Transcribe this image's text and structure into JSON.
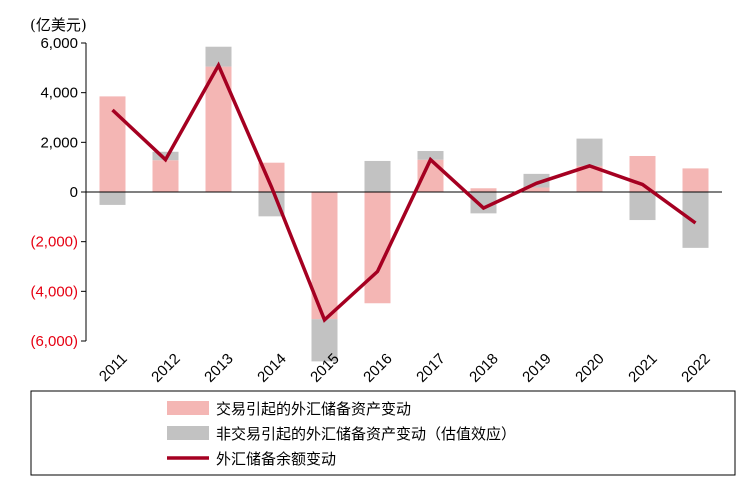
{
  "chart_data": {
    "type": "bar",
    "unit_label": "(亿美元)",
    "ylim": [
      -6000,
      6000
    ],
    "y_ticks": [
      {
        "value": 6000,
        "label": "6,000",
        "color": "#000000"
      },
      {
        "value": 4000,
        "label": "4,000",
        "color": "#000000"
      },
      {
        "value": 2000,
        "label": "2,000",
        "color": "#000000"
      },
      {
        "value": 0,
        "label": "0",
        "color": "#000000"
      },
      {
        "value": -2000,
        "label": "(2,000)",
        "color": "#e60012"
      },
      {
        "value": -4000,
        "label": "(4,000)",
        "color": "#e60012"
      },
      {
        "value": -6000,
        "label": "(6,000)",
        "color": "#e60012"
      }
    ],
    "categories": [
      "2011",
      "2012",
      "2013",
      "2014",
      "2015",
      "2016",
      "2017",
      "2018",
      "2019",
      "2020",
      "2021",
      "2022"
    ],
    "series": [
      {
        "name": "交易引起的外汇储备资产变动",
        "kind": "bar",
        "color": "#f4b6b4",
        "values": [
          3850,
          1280,
          5050,
          1180,
          -5120,
          -4480,
          1300,
          150,
          180,
          1050,
          1450,
          950
        ]
      },
      {
        "name": "非交易引起的外汇储备资产变动（估值效应）",
        "kind": "bar",
        "color": "#c2c2c2",
        "values": [
          -520,
          340,
          800,
          -980,
          -1700,
          1250,
          350,
          -860,
          550,
          1100,
          -1130,
          -2250
        ]
      },
      {
        "name": "外汇储备余额变动",
        "kind": "line",
        "color": "#a50021",
        "values": [
          3300,
          1300,
          5100,
          200,
          -5150,
          -3200,
          1300,
          -650,
          350,
          1050,
          300,
          -1250
        ]
      }
    ]
  }
}
